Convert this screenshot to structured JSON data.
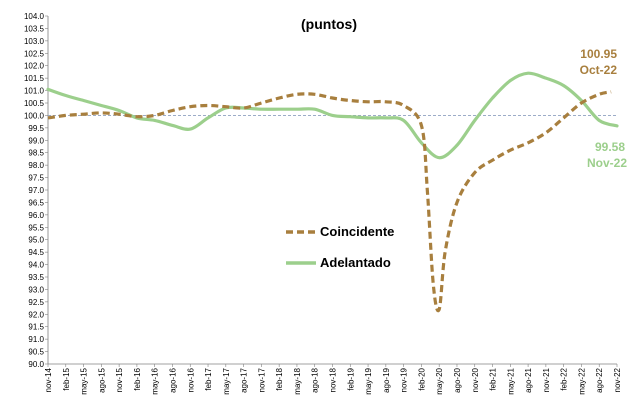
{
  "chart_data": {
    "type": "line",
    "title": "(puntos)",
    "xlabel": "",
    "ylabel": "",
    "ylim": [
      90.0,
      104.0
    ],
    "ytick_step": 0.5,
    "reference_line": 100.0,
    "x_tick_labels": [
      "nov-14",
      "feb-15",
      "may-15",
      "ago-15",
      "nov-15",
      "feb-16",
      "may-16",
      "ago-16",
      "nov-16",
      "feb-17",
      "may-17",
      "ago-17",
      "nov-17",
      "feb-18",
      "may-18",
      "ago-18",
      "nov-18",
      "feb-19",
      "may-19",
      "ago-19",
      "nov-19",
      "feb-20",
      "may-20",
      "ago-20",
      "nov-20",
      "feb-21",
      "may-21",
      "ago-21",
      "nov-21",
      "feb-22",
      "may-22",
      "ago-22",
      "nov-22"
    ],
    "legend_position": "center",
    "colors": {
      "coincidente": "#A87F3E",
      "adelantado": "#9CCF8C",
      "reference": "#8EA0C0",
      "annotation_coincidente": "#A87F3E",
      "annotation_adelantado": "#9CCF8C"
    },
    "series": [
      {
        "name": "Coincidente",
        "style": "dashed",
        "points": [
          {
            "x": "nov-14",
            "y": 99.9
          },
          {
            "x": "feb-15",
            "y": 100.0
          },
          {
            "x": "may-15",
            "y": 100.05
          },
          {
            "x": "ago-15",
            "y": 100.1
          },
          {
            "x": "nov-15",
            "y": 100.05
          },
          {
            "x": "feb-16",
            "y": 99.95
          },
          {
            "x": "may-16",
            "y": 100.0
          },
          {
            "x": "ago-16",
            "y": 100.2
          },
          {
            "x": "nov-16",
            "y": 100.35
          },
          {
            "x": "feb-17",
            "y": 100.4
          },
          {
            "x": "may-17",
            "y": 100.35
          },
          {
            "x": "ago-17",
            "y": 100.3
          },
          {
            "x": "nov-17",
            "y": 100.5
          },
          {
            "x": "feb-18",
            "y": 100.7
          },
          {
            "x": "may-18",
            "y": 100.85
          },
          {
            "x": "ago-18",
            "y": 100.85
          },
          {
            "x": "nov-18",
            "y": 100.7
          },
          {
            "x": "feb-19",
            "y": 100.6
          },
          {
            "x": "may-19",
            "y": 100.55
          },
          {
            "x": "ago-19",
            "y": 100.55
          },
          {
            "x": "nov-19",
            "y": 100.4
          },
          {
            "x": "feb-20",
            "y": 99.6
          },
          {
            "x": "mar-20",
            "y": 97.0
          },
          {
            "x": "apr-20",
            "y": 93.2
          },
          {
            "x": "may-20",
            "y": 92.2
          },
          {
            "x": "jun-20",
            "y": 94.5
          },
          {
            "x": "ago-20",
            "y": 96.5
          },
          {
            "x": "nov-20",
            "y": 97.7
          },
          {
            "x": "feb-21",
            "y": 98.2
          },
          {
            "x": "may-21",
            "y": 98.6
          },
          {
            "x": "ago-21",
            "y": 98.9
          },
          {
            "x": "nov-21",
            "y": 99.3
          },
          {
            "x": "feb-22",
            "y": 99.9
          },
          {
            "x": "may-22",
            "y": 100.5
          },
          {
            "x": "ago-22",
            "y": 100.85
          },
          {
            "x": "oct-22",
            "y": 100.95
          }
        ]
      },
      {
        "name": "Adelantado",
        "style": "solid",
        "points": [
          {
            "x": "nov-14",
            "y": 101.05
          },
          {
            "x": "feb-15",
            "y": 100.8
          },
          {
            "x": "may-15",
            "y": 100.6
          },
          {
            "x": "ago-15",
            "y": 100.4
          },
          {
            "x": "nov-15",
            "y": 100.2
          },
          {
            "x": "feb-16",
            "y": 99.9
          },
          {
            "x": "may-16",
            "y": 99.8
          },
          {
            "x": "ago-16",
            "y": 99.6
          },
          {
            "x": "nov-16",
            "y": 99.45
          },
          {
            "x": "feb-17",
            "y": 99.9
          },
          {
            "x": "may-17",
            "y": 100.3
          },
          {
            "x": "ago-17",
            "y": 100.3
          },
          {
            "x": "nov-17",
            "y": 100.25
          },
          {
            "x": "feb-18",
            "y": 100.25
          },
          {
            "x": "may-18",
            "y": 100.25
          },
          {
            "x": "ago-18",
            "y": 100.25
          },
          {
            "x": "nov-18",
            "y": 100.0
          },
          {
            "x": "feb-19",
            "y": 99.95
          },
          {
            "x": "may-19",
            "y": 99.9
          },
          {
            "x": "ago-19",
            "y": 99.9
          },
          {
            "x": "nov-19",
            "y": 99.8
          },
          {
            "x": "feb-20",
            "y": 98.9
          },
          {
            "x": "may-20",
            "y": 98.3
          },
          {
            "x": "ago-20",
            "y": 98.8
          },
          {
            "x": "nov-20",
            "y": 99.8
          },
          {
            "x": "feb-21",
            "y": 100.7
          },
          {
            "x": "may-21",
            "y": 101.4
          },
          {
            "x": "ago-21",
            "y": 101.7
          },
          {
            "x": "nov-21",
            "y": 101.5
          },
          {
            "x": "feb-22",
            "y": 101.2
          },
          {
            "x": "may-22",
            "y": 100.6
          },
          {
            "x": "ago-22",
            "y": 99.8
          },
          {
            "x": "nov-22",
            "y": 99.58
          }
        ]
      }
    ],
    "annotations": [
      {
        "series": "Coincidente",
        "value": "100.95",
        "label": "Oct-22"
      },
      {
        "series": "Adelantado",
        "value": "99.58",
        "label": "Nov-22"
      }
    ]
  }
}
